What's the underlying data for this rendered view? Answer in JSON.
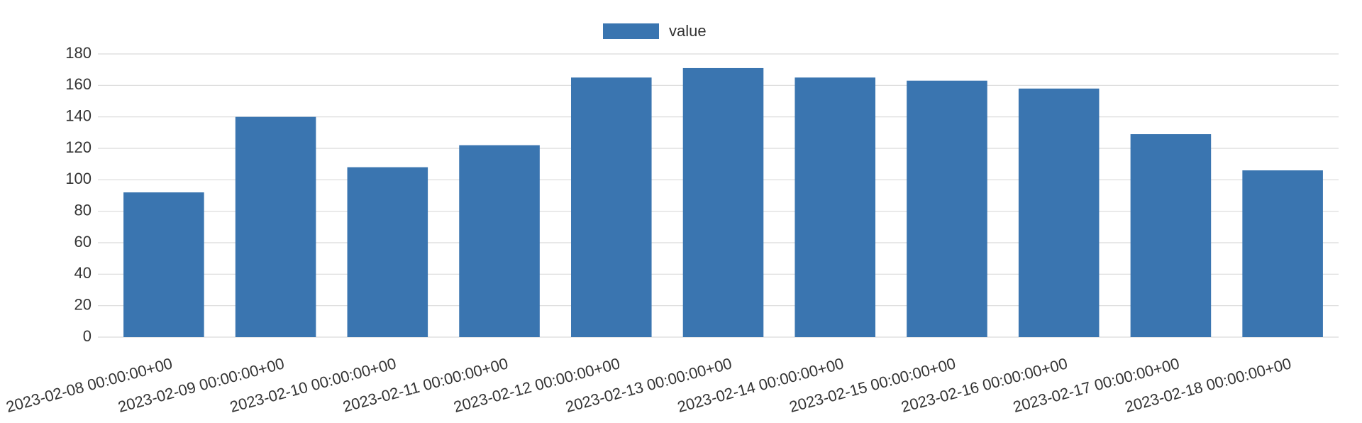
{
  "chart_data": {
    "type": "bar",
    "categories": [
      "2023-02-08 00:00:00+00",
      "2023-02-09 00:00:00+00",
      "2023-02-10 00:00:00+00",
      "2023-02-11 00:00:00+00",
      "2023-02-12 00:00:00+00",
      "2023-02-13 00:00:00+00",
      "2023-02-14 00:00:00+00",
      "2023-02-15 00:00:00+00",
      "2023-02-16 00:00:00+00",
      "2023-02-17 00:00:00+00",
      "2023-02-18 00:00:00+00"
    ],
    "series": [
      {
        "name": "value",
        "color": "#3a75b0",
        "values": [
          92,
          140,
          108,
          122,
          165,
          171,
          165,
          163,
          158,
          129,
          106
        ]
      }
    ],
    "ylim": [
      0,
      180
    ],
    "yticks": [
      0,
      20,
      40,
      60,
      80,
      100,
      120,
      140,
      160,
      180
    ],
    "grid": true,
    "legend": "top"
  }
}
